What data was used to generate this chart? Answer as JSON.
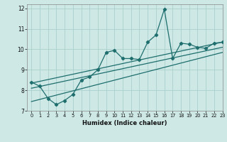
{
  "xlabel": "Humidex (Indice chaleur)",
  "background_color": "#cde8e5",
  "grid_color": "#aacfcc",
  "line_color": "#1e6e6e",
  "xlim": [
    -0.5,
    23
  ],
  "ylim": [
    7,
    12.2
  ],
  "xticks": [
    0,
    1,
    2,
    3,
    4,
    5,
    6,
    7,
    8,
    9,
    10,
    11,
    12,
    13,
    14,
    15,
    16,
    17,
    18,
    19,
    20,
    21,
    22,
    23
  ],
  "yticks": [
    7,
    8,
    9,
    10,
    11,
    12
  ],
  "main_x": [
    0,
    1,
    2,
    3,
    4,
    5,
    6,
    7,
    8,
    9,
    10,
    11,
    12,
    13,
    14,
    15,
    16,
    17,
    18,
    19,
    20,
    21,
    22,
    23
  ],
  "main_y": [
    8.4,
    8.2,
    7.6,
    7.3,
    7.5,
    7.8,
    8.5,
    8.65,
    9.0,
    9.85,
    9.95,
    9.55,
    9.55,
    9.5,
    10.35,
    10.7,
    11.95,
    9.55,
    10.3,
    10.25,
    10.1,
    10.05,
    10.3,
    10.35
  ],
  "regression_lines": [
    {
      "x0": 0,
      "y0": 8.35,
      "x1": 23,
      "y1": 10.35
    },
    {
      "x0": 0,
      "y0": 8.1,
      "x1": 23,
      "y1": 10.1
    },
    {
      "x0": 0,
      "y0": 7.45,
      "x1": 23,
      "y1": 9.85
    }
  ]
}
